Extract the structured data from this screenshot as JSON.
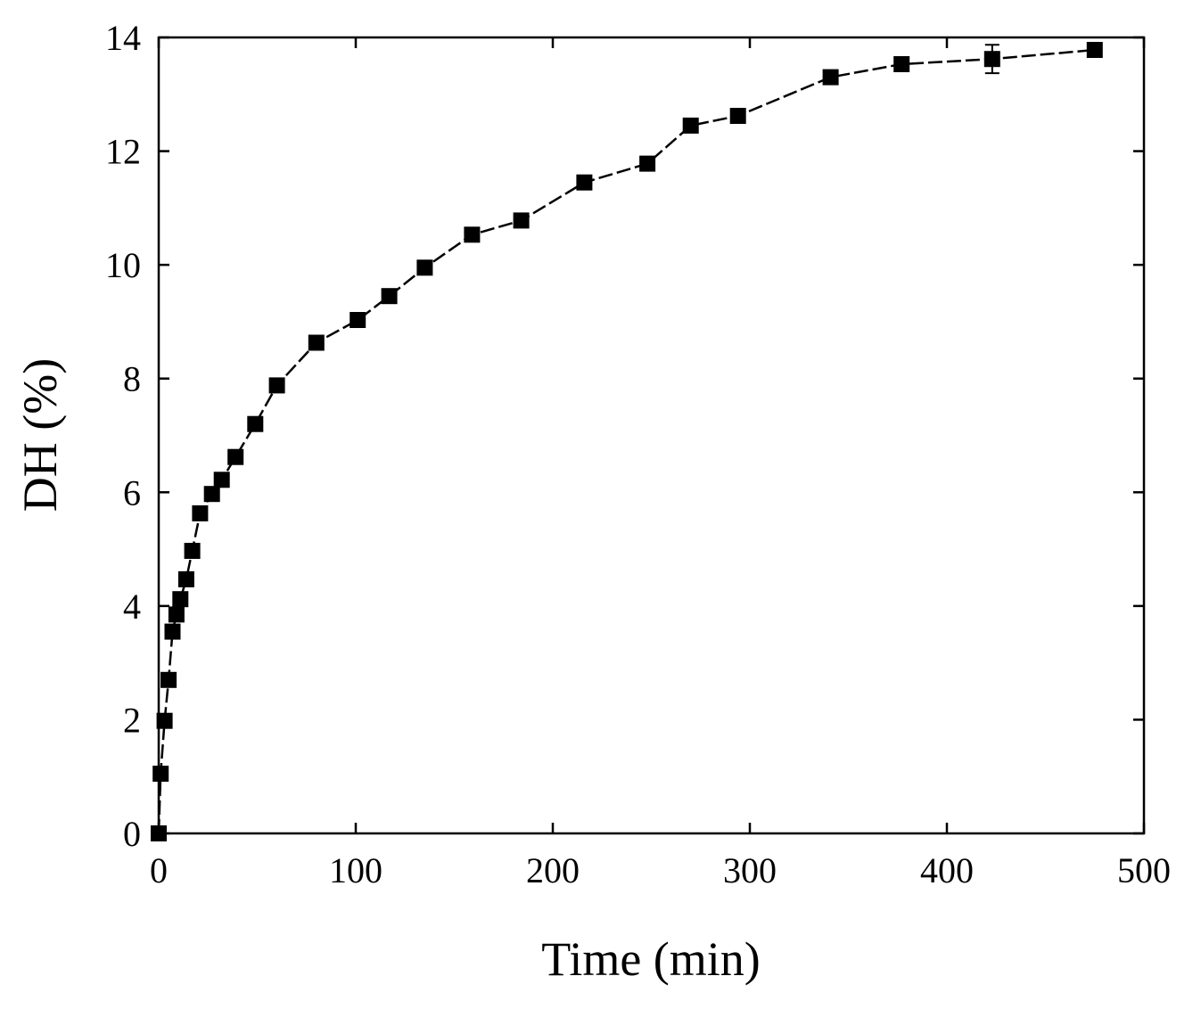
{
  "chart_data": {
    "type": "line",
    "title": "",
    "xlabel": "Time (min)",
    "ylabel": "DH (%)",
    "xlim": [
      0,
      500
    ],
    "ylim": [
      0,
      14
    ],
    "xticks": [
      0,
      100,
      200,
      300,
      400,
      500
    ],
    "yticks": [
      0,
      2,
      4,
      6,
      8,
      10,
      12,
      14
    ],
    "grid": false,
    "legend": "none",
    "marker": "square",
    "line_style": "dashed",
    "color": "#000000",
    "series": [
      {
        "x": [
          0,
          1,
          3,
          5,
          7,
          9,
          11,
          14,
          17,
          21,
          27,
          32,
          39,
          49,
          60,
          80,
          101,
          117,
          135,
          159,
          184,
          216,
          248,
          270,
          294,
          341,
          377,
          423,
          475
        ],
        "y": [
          0,
          1.05,
          1.98,
          2.7,
          3.55,
          3.85,
          4.12,
          4.47,
          4.97,
          5.63,
          5.97,
          6.22,
          6.62,
          7.2,
          7.88,
          8.63,
          9.03,
          9.45,
          9.95,
          10.53,
          10.78,
          11.45,
          11.78,
          12.45,
          12.62,
          13.3,
          13.53,
          13.62,
          13.78
        ],
        "error": [
          0,
          0,
          0,
          0,
          0,
          0,
          0,
          0,
          0,
          0,
          0,
          0,
          0,
          0,
          0,
          0,
          0,
          0,
          0,
          0,
          0,
          0,
          0,
          0,
          0,
          0,
          0,
          0.25,
          0.1
        ]
      }
    ]
  }
}
